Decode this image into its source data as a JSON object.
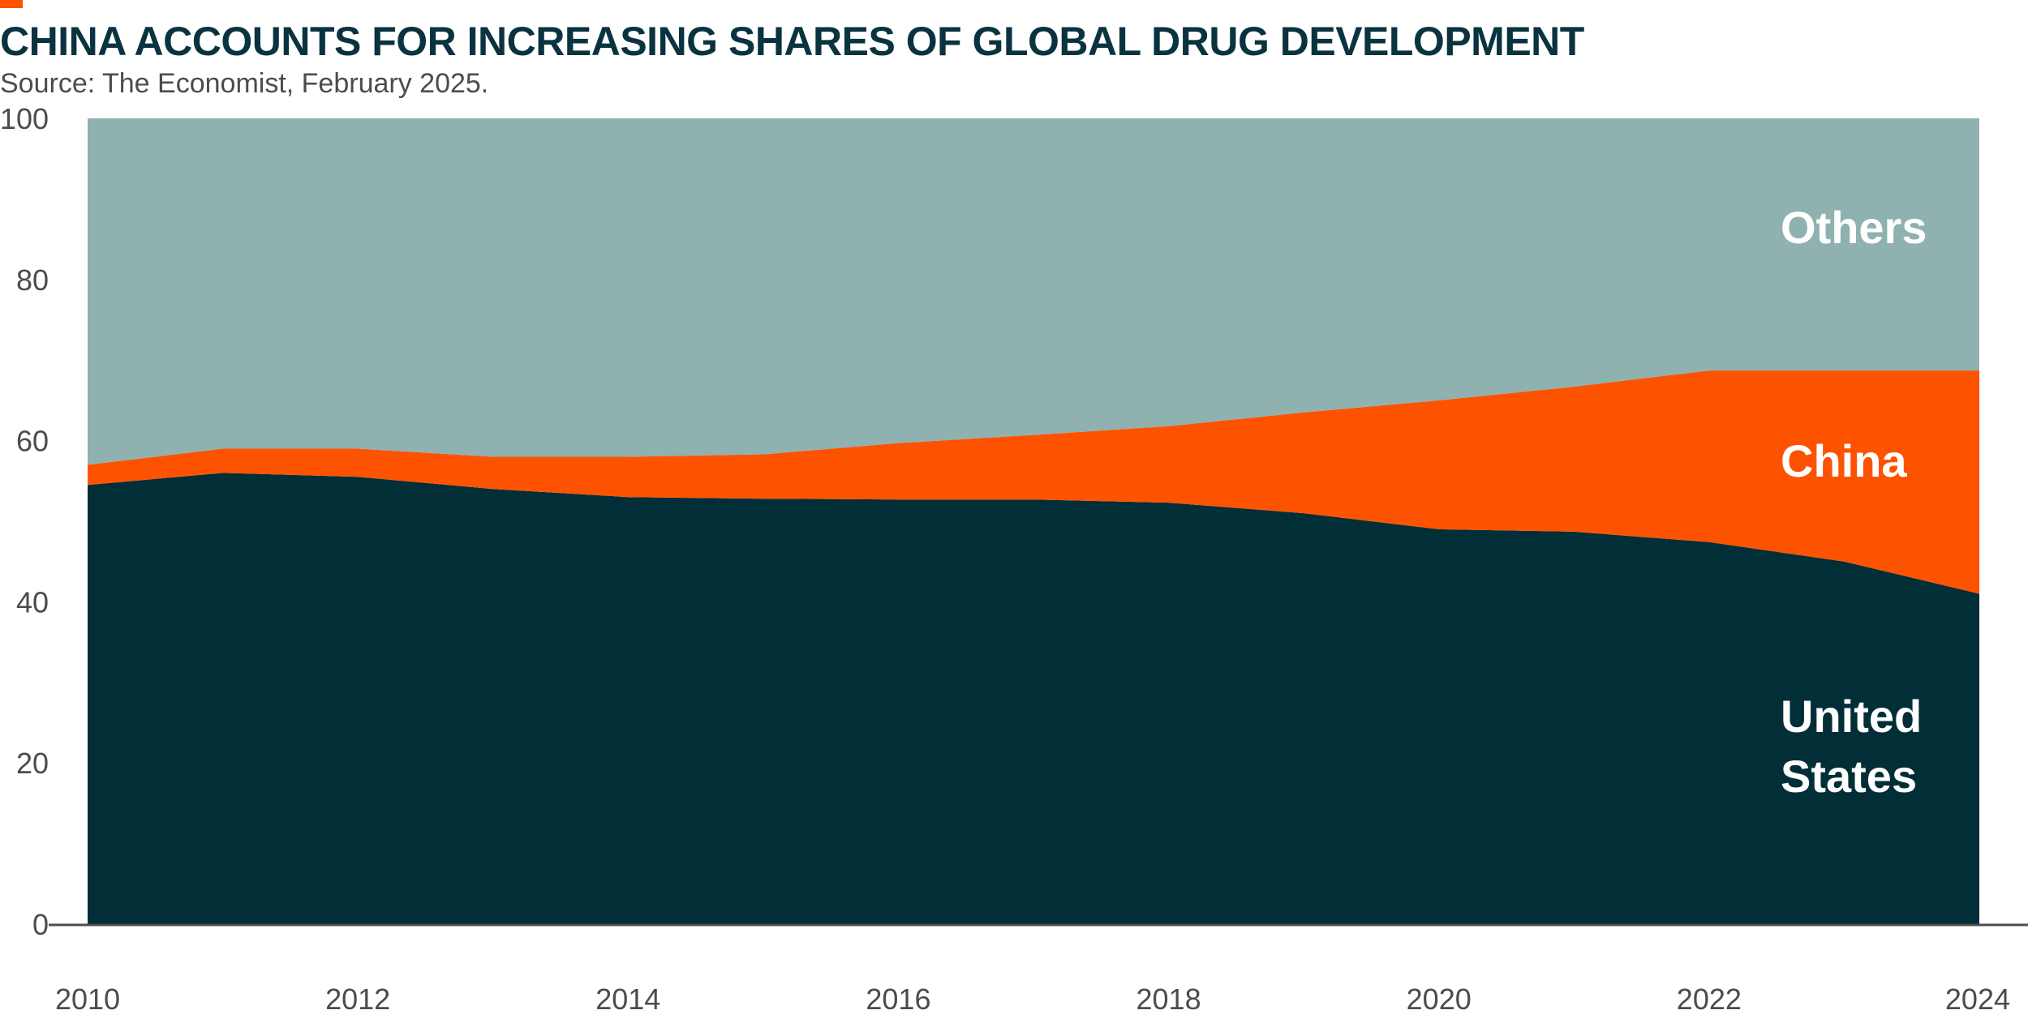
{
  "title": "CHINA ACCOUNTS FOR INCREASING SHARES OF GLOBAL DRUG DEVELOPMENT",
  "subtitle": "Source: The Economist, February 2025.",
  "colors": {
    "us": "#022e38",
    "china": "#fd5300",
    "others": "#8fb1b0",
    "accent": "#fd5300",
    "title": "#0a3340",
    "axis_text": "#4c4c4c"
  },
  "chart_data": {
    "type": "area",
    "stacked": true,
    "title": "CHINA ACCOUNTS FOR INCREASING SHARES OF GLOBAL DRUG DEVELOPMENT",
    "xlabel": "",
    "ylabel": "",
    "xlim": [
      2010,
      2024
    ],
    "ylim": [
      0,
      100
    ],
    "x_ticks": [
      "2010",
      "2012",
      "2014",
      "2016",
      "2018",
      "2020",
      "2022",
      "2024"
    ],
    "y_ticks": [
      "0",
      "20",
      "40",
      "60",
      "80",
      "100"
    ],
    "x": [
      2010,
      2011,
      2012,
      2013,
      2014,
      2015,
      2016,
      2017,
      2018,
      2019,
      2020,
      2021,
      2022,
      2023,
      2024
    ],
    "series": [
      {
        "name": "United States",
        "values": [
          54.5,
          56.0,
          55.5,
          54.0,
          53.0,
          52.8,
          52.7,
          52.7,
          52.3,
          51.0,
          49.0,
          48.7,
          47.4,
          45.0,
          41.0
        ]
      },
      {
        "name": "China",
        "values": [
          2.5,
          3.0,
          3.5,
          4.0,
          5.0,
          5.5,
          7.0,
          8.0,
          9.5,
          12.5,
          16.0,
          18.0,
          21.3,
          23.7,
          27.7
        ]
      },
      {
        "name": "Others",
        "values": [
          43.0,
          41.0,
          41.0,
          42.0,
          42.0,
          41.7,
          40.3,
          39.3,
          38.2,
          36.5,
          35.0,
          33.3,
          31.3,
          31.3,
          31.3
        ]
      }
    ],
    "labels": {
      "others": "Others",
      "china": "China",
      "us_line1": "United",
      "us_line2": "States"
    },
    "grid": false,
    "legend": "none (inline labels at right)"
  }
}
